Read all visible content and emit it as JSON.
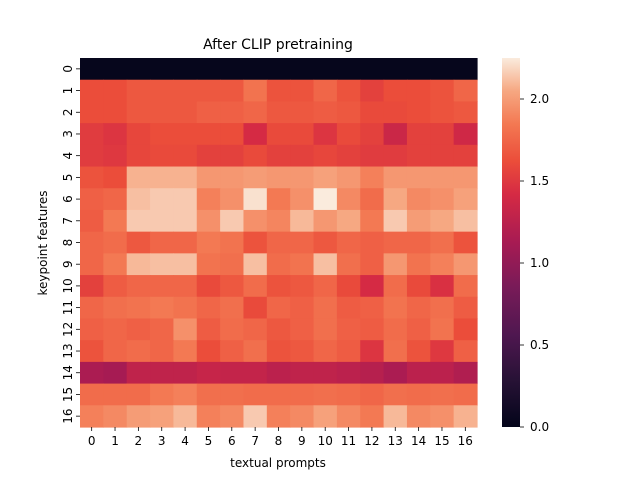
{
  "chart_data": {
    "type": "heatmap",
    "title": "After CLIP pretraining",
    "xlabel": "textual prompts",
    "ylabel": "keypoint features",
    "x_tick_labels": [
      "0",
      "1",
      "2",
      "3",
      "4",
      "5",
      "6",
      "7",
      "8",
      "9",
      "10",
      "11",
      "12",
      "13",
      "14",
      "15",
      "16"
    ],
    "y_tick_labels": [
      "0",
      "1",
      "2",
      "3",
      "4",
      "5",
      "6",
      "7",
      "8",
      "9",
      "10",
      "11",
      "12",
      "13",
      "14",
      "15",
      "16"
    ],
    "colorbar": {
      "vmin": 0.0,
      "vmax": 2.25,
      "ticks": [
        0.0,
        0.5,
        1.0,
        1.5,
        2.0
      ],
      "tick_labels": [
        "0.0",
        "0.5",
        "1.0",
        "1.5",
        "2.0"
      ],
      "colormap": "rocket"
    },
    "values": [
      [
        0.02,
        0.02,
        0.02,
        0.02,
        0.02,
        0.02,
        0.02,
        0.02,
        0.02,
        0.02,
        0.02,
        0.02,
        0.02,
        0.02,
        0.02,
        0.02,
        0.02
      ],
      [
        1.62,
        1.62,
        1.68,
        1.68,
        1.68,
        1.68,
        1.68,
        1.82,
        1.65,
        1.65,
        1.75,
        1.65,
        1.55,
        1.62,
        1.62,
        1.65,
        1.75
      ],
      [
        1.62,
        1.62,
        1.68,
        1.68,
        1.68,
        1.72,
        1.72,
        1.75,
        1.68,
        1.68,
        1.7,
        1.68,
        1.6,
        1.6,
        1.62,
        1.65,
        1.68
      ],
      [
        1.52,
        1.48,
        1.58,
        1.62,
        1.62,
        1.62,
        1.62,
        1.42,
        1.6,
        1.6,
        1.48,
        1.6,
        1.55,
        1.35,
        1.55,
        1.55,
        1.38
      ],
      [
        1.52,
        1.5,
        1.58,
        1.6,
        1.6,
        1.55,
        1.55,
        1.6,
        1.55,
        1.55,
        1.58,
        1.55,
        1.52,
        1.52,
        1.55,
        1.55,
        1.55
      ],
      [
        1.65,
        1.62,
        2.08,
        2.08,
        2.08,
        1.98,
        1.98,
        2.0,
        1.98,
        1.98,
        2.02,
        1.98,
        1.88,
        1.98,
        1.98,
        1.98,
        1.98
      ],
      [
        1.72,
        1.75,
        2.12,
        2.15,
        2.15,
        1.88,
        1.95,
        2.22,
        1.85,
        1.95,
        2.25,
        1.92,
        1.78,
        2.05,
        1.92,
        1.95,
        2.02
      ],
      [
        1.7,
        1.85,
        2.15,
        2.15,
        2.15,
        1.95,
        2.15,
        1.95,
        1.9,
        2.1,
        1.98,
        2.05,
        1.85,
        2.15,
        2.0,
        2.05,
        2.12
      ],
      [
        1.75,
        1.78,
        1.68,
        1.75,
        1.75,
        1.85,
        1.82,
        1.65,
        1.75,
        1.75,
        1.68,
        1.75,
        1.72,
        1.75,
        1.75,
        1.8,
        1.65
      ],
      [
        1.75,
        1.85,
        2.1,
        2.12,
        2.12,
        1.82,
        1.8,
        2.12,
        1.78,
        1.82,
        2.12,
        1.8,
        1.72,
        1.98,
        1.82,
        1.88,
        1.98
      ],
      [
        1.55,
        1.7,
        1.75,
        1.75,
        1.75,
        1.6,
        1.68,
        1.78,
        1.65,
        1.68,
        1.75,
        1.6,
        1.42,
        1.78,
        1.6,
        1.45,
        1.78
      ],
      [
        1.75,
        1.8,
        1.82,
        1.85,
        1.82,
        1.75,
        1.8,
        1.6,
        1.75,
        1.72,
        1.8,
        1.7,
        1.72,
        1.82,
        1.75,
        1.8,
        1.7
      ],
      [
        1.72,
        1.75,
        1.72,
        1.75,
        1.95,
        1.7,
        1.78,
        1.75,
        1.68,
        1.72,
        1.8,
        1.72,
        1.7,
        1.78,
        1.72,
        1.82,
        1.62
      ],
      [
        1.65,
        1.75,
        1.78,
        1.75,
        1.85,
        1.62,
        1.72,
        1.8,
        1.65,
        1.68,
        1.75,
        1.7,
        1.48,
        1.8,
        1.65,
        1.5,
        1.72
      ],
      [
        1.15,
        1.12,
        1.28,
        1.28,
        1.28,
        1.32,
        1.3,
        1.3,
        1.25,
        1.28,
        1.28,
        1.25,
        1.22,
        1.15,
        1.25,
        1.25,
        1.18
      ],
      [
        1.78,
        1.78,
        1.78,
        1.85,
        1.88,
        1.8,
        1.8,
        1.78,
        1.78,
        1.78,
        1.8,
        1.78,
        1.75,
        1.8,
        1.78,
        1.8,
        1.78
      ],
      [
        1.88,
        1.92,
        2.0,
        2.02,
        2.1,
        1.88,
        1.92,
        2.15,
        1.88,
        1.92,
        2.02,
        1.92,
        1.85,
        2.1,
        1.92,
        1.95,
        2.08
      ]
    ]
  }
}
